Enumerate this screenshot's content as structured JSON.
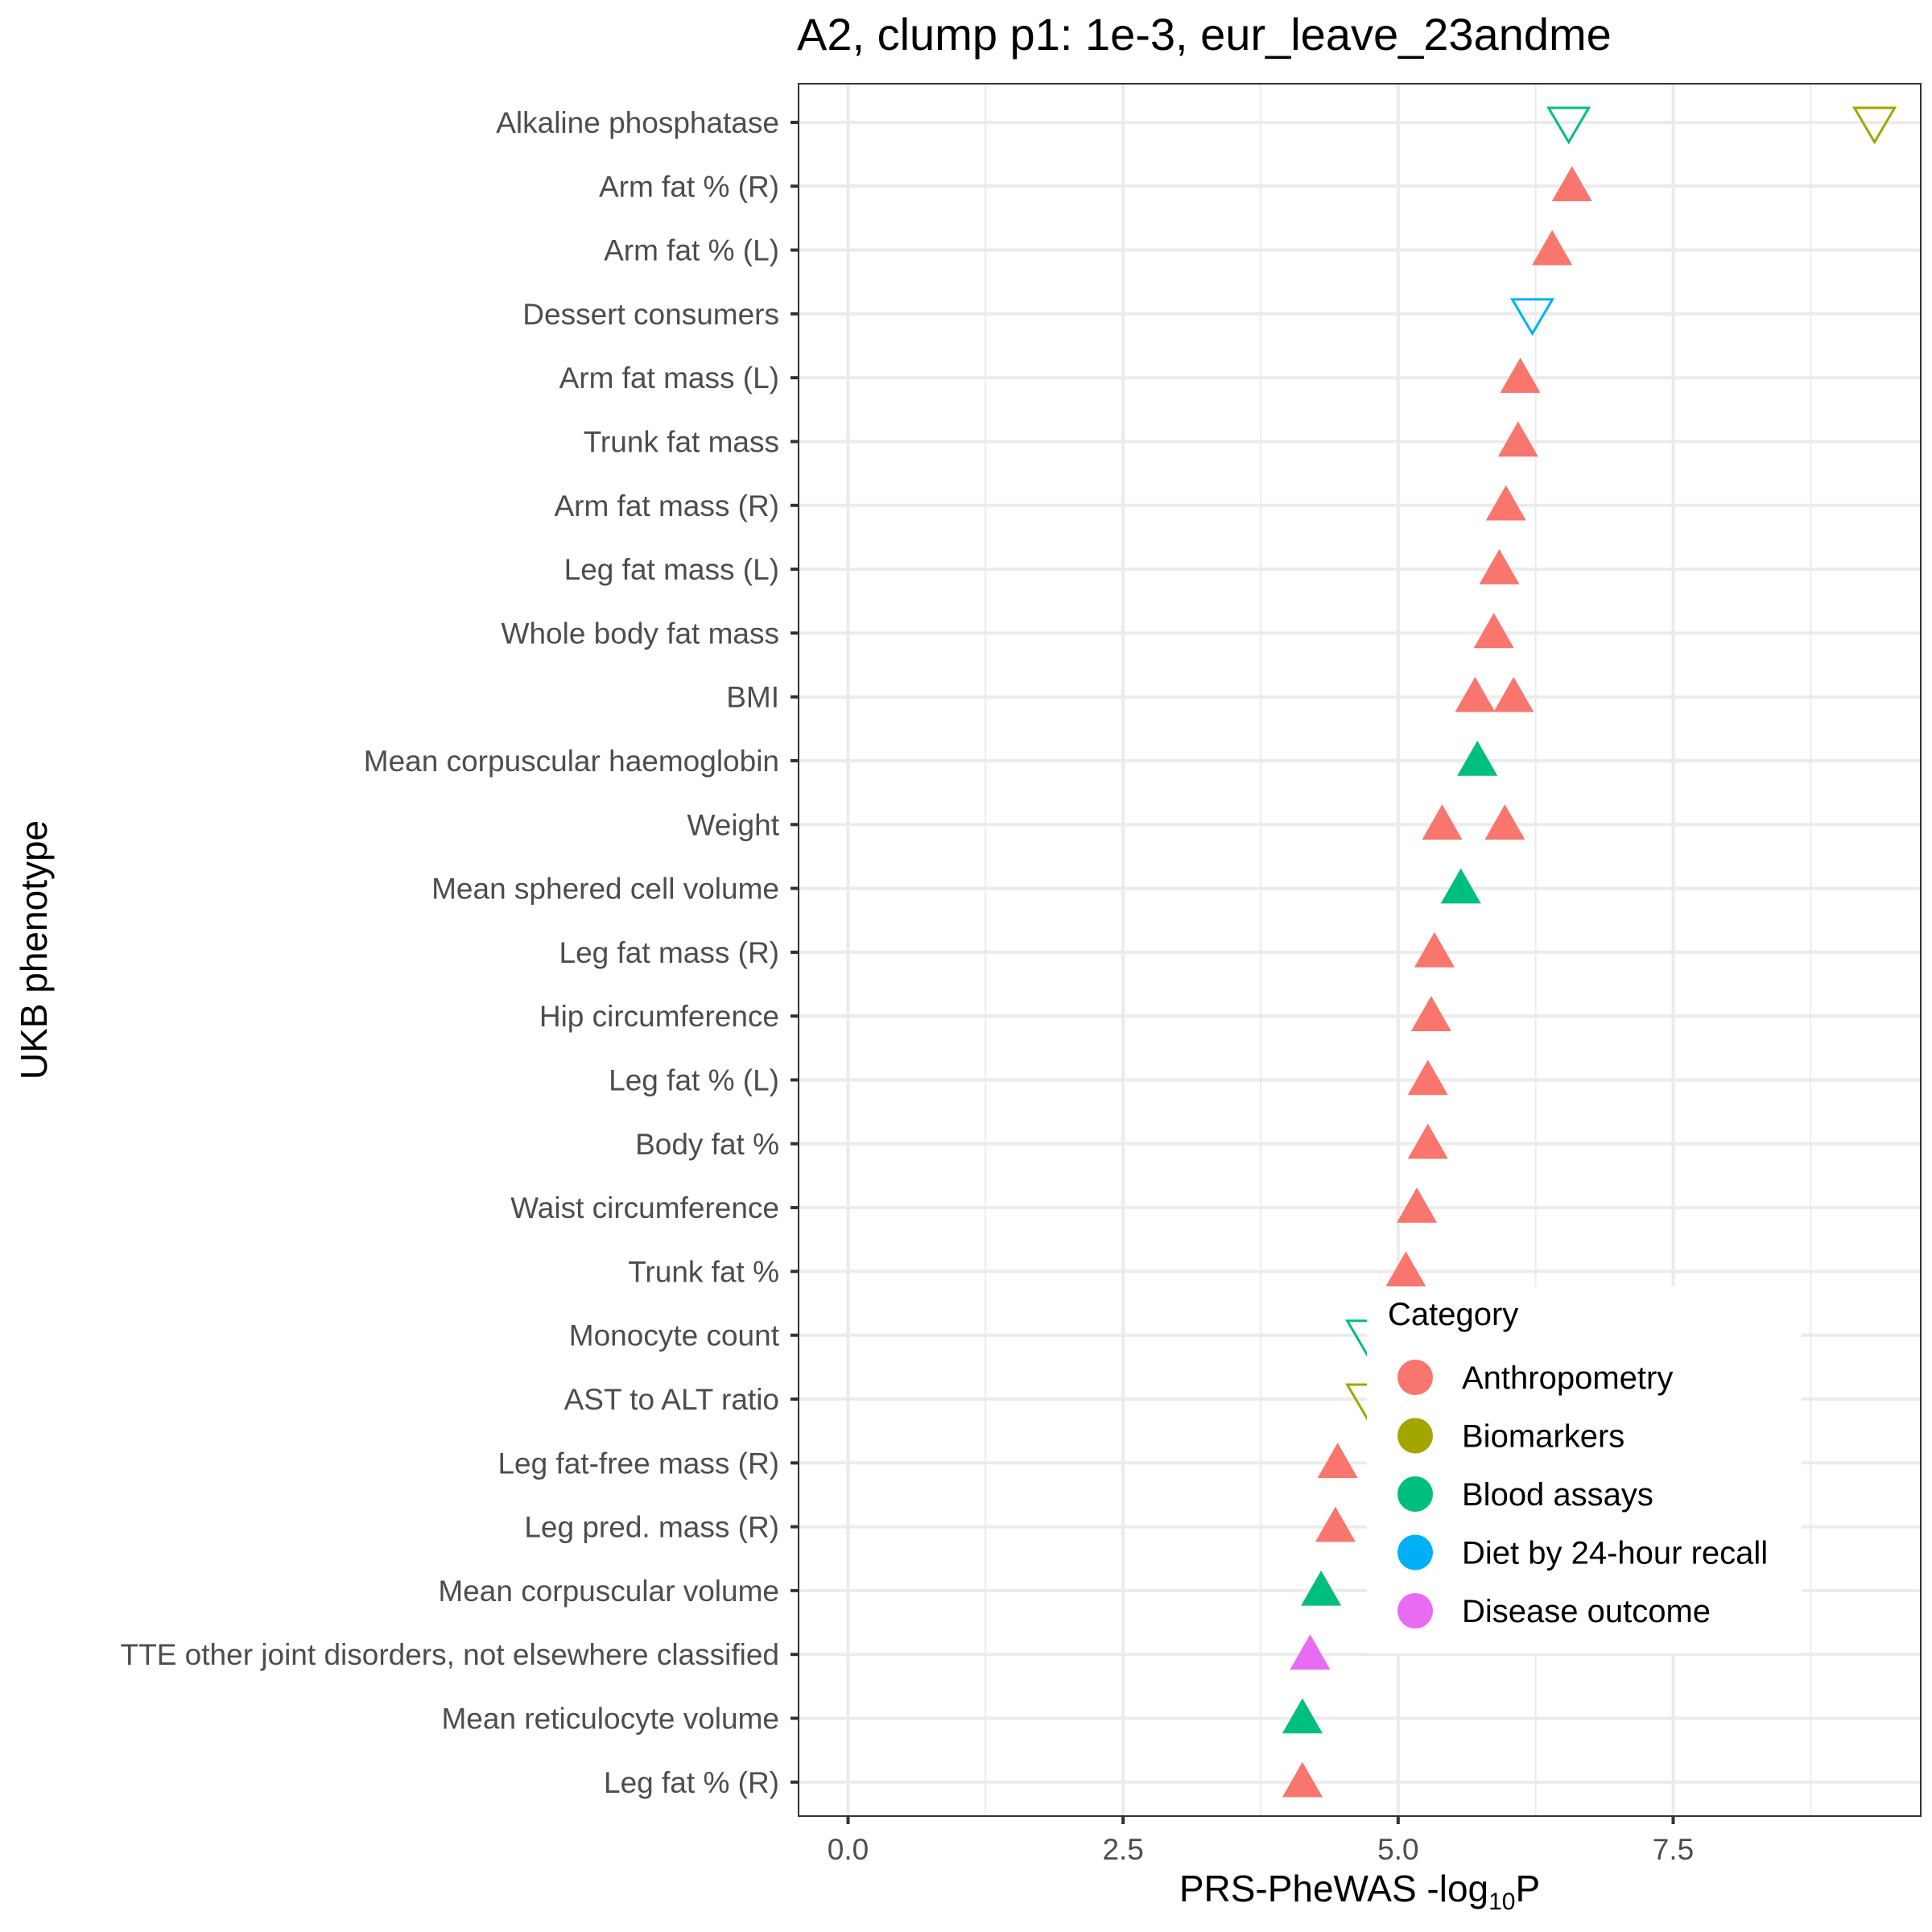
{
  "chart_data": {
    "type": "scatter",
    "title": "A2, clump p1: 1e-3, eur_leave_23andme",
    "xlabel": "PRS-PheWAS -log",
    "xlabel_sub": "10",
    "xlabel_tail": "P",
    "ylabel": "UKB phenotype",
    "xlim": [
      -0.45,
      9.75
    ],
    "xticks": [
      "0.0",
      "2.5",
      "5.0",
      "7.5"
    ],
    "xtick_values": [
      0,
      2.5,
      5,
      7.5
    ],
    "grid": true,
    "legend_placement": "bottom-right",
    "legend": {
      "title": "Category",
      "entries": [
        {
          "label": "Anthropometry",
          "color": "#F8766D"
        },
        {
          "label": "Biomarkers",
          "color": "#A3A500"
        },
        {
          "label": "Blood assays",
          "color": "#00BF7D"
        },
        {
          "label": "Diet by 24-hour recall",
          "color": "#00B0F6"
        },
        {
          "label": "Disease outcome",
          "color": "#E76BF3"
        }
      ]
    },
    "categories": [
      "Alkaline phosphatase",
      "Arm fat % (R)",
      "Arm fat % (L)",
      "Dessert consumers",
      "Arm fat mass (L)",
      "Trunk fat mass",
      "Arm fat mass (R)",
      "Leg fat mass (L)",
      "Whole body fat mass",
      "BMI",
      "Mean corpuscular haemoglobin",
      "Weight",
      "Mean sphered cell volume",
      "Leg fat mass (R)",
      "Hip circumference",
      "Leg fat % (L)",
      "Body fat %",
      "Waist circumference",
      "Trunk fat %",
      "Monocyte count",
      "AST to ALT ratio",
      "Leg fat-free mass (R)",
      "Leg pred. mass (R)",
      "Mean corpuscular volume",
      "TTE other joint disorders, not elsewhere classified",
      "Mean reticulocyte volume",
      "Leg fat % (R)"
    ],
    "points": [
      {
        "phenotype": "Alkaline phosphatase",
        "x": 6.55,
        "category": "Blood assays",
        "direction": "down"
      },
      {
        "phenotype": "Alkaline phosphatase",
        "x": 9.33,
        "category": "Biomarkers",
        "direction": "down"
      },
      {
        "phenotype": "Arm fat % (R)",
        "x": 6.58,
        "category": "Anthropometry",
        "direction": "up"
      },
      {
        "phenotype": "Arm fat % (L)",
        "x": 6.4,
        "category": "Anthropometry",
        "direction": "up"
      },
      {
        "phenotype": "Dessert consumers",
        "x": 6.22,
        "category": "Diet by 24-hour recall",
        "direction": "down"
      },
      {
        "phenotype": "Arm fat mass (L)",
        "x": 6.11,
        "category": "Anthropometry",
        "direction": "up"
      },
      {
        "phenotype": "Trunk fat mass",
        "x": 6.09,
        "category": "Anthropometry",
        "direction": "up"
      },
      {
        "phenotype": "Arm fat mass (R)",
        "x": 5.98,
        "category": "Anthropometry",
        "direction": "up"
      },
      {
        "phenotype": "Leg fat mass (L)",
        "x": 5.92,
        "category": "Anthropometry",
        "direction": "up"
      },
      {
        "phenotype": "Whole body fat mass",
        "x": 5.87,
        "category": "Anthropometry",
        "direction": "up"
      },
      {
        "phenotype": "BMI",
        "x": 5.7,
        "category": "Anthropometry",
        "direction": "up"
      },
      {
        "phenotype": "BMI",
        "x": 6.05,
        "category": "Anthropometry",
        "direction": "up"
      },
      {
        "phenotype": "Mean corpuscular haemoglobin",
        "x": 5.72,
        "category": "Blood assays",
        "direction": "up"
      },
      {
        "phenotype": "Weight",
        "x": 5.4,
        "category": "Anthropometry",
        "direction": "up"
      },
      {
        "phenotype": "Weight",
        "x": 5.97,
        "category": "Anthropometry",
        "direction": "up"
      },
      {
        "phenotype": "Mean sphered cell volume",
        "x": 5.57,
        "category": "Blood assays",
        "direction": "up"
      },
      {
        "phenotype": "Leg fat mass (R)",
        "x": 5.33,
        "category": "Anthropometry",
        "direction": "up"
      },
      {
        "phenotype": "Hip circumference",
        "x": 5.3,
        "category": "Anthropometry",
        "direction": "up"
      },
      {
        "phenotype": "Leg fat % (L)",
        "x": 5.27,
        "category": "Anthropometry",
        "direction": "up"
      },
      {
        "phenotype": "Body fat %",
        "x": 5.27,
        "category": "Anthropometry",
        "direction": "up"
      },
      {
        "phenotype": "Waist circumference",
        "x": 5.17,
        "category": "Anthropometry",
        "direction": "up"
      },
      {
        "phenotype": "Trunk fat %",
        "x": 5.07,
        "category": "Anthropometry",
        "direction": "up"
      },
      {
        "phenotype": "Monocyte count",
        "x": 4.72,
        "category": "Blood assays",
        "direction": "down"
      },
      {
        "phenotype": "AST to ALT ratio",
        "x": 4.72,
        "category": "Biomarkers",
        "direction": "down"
      },
      {
        "phenotype": "Leg fat-free mass (R)",
        "x": 4.45,
        "category": "Anthropometry",
        "direction": "up"
      },
      {
        "phenotype": "Leg pred. mass (R)",
        "x": 4.43,
        "category": "Anthropometry",
        "direction": "up"
      },
      {
        "phenotype": "Mean corpuscular volume",
        "x": 4.3,
        "category": "Blood assays",
        "direction": "up"
      },
      {
        "phenotype": "TTE other joint disorders, not elsewhere classified",
        "x": 4.2,
        "category": "Disease outcome",
        "direction": "up"
      },
      {
        "phenotype": "Mean reticulocyte volume",
        "x": 4.13,
        "category": "Blood assays",
        "direction": "up"
      },
      {
        "phenotype": "Leg fat % (R)",
        "x": 4.13,
        "category": "Anthropometry",
        "direction": "up"
      }
    ]
  }
}
